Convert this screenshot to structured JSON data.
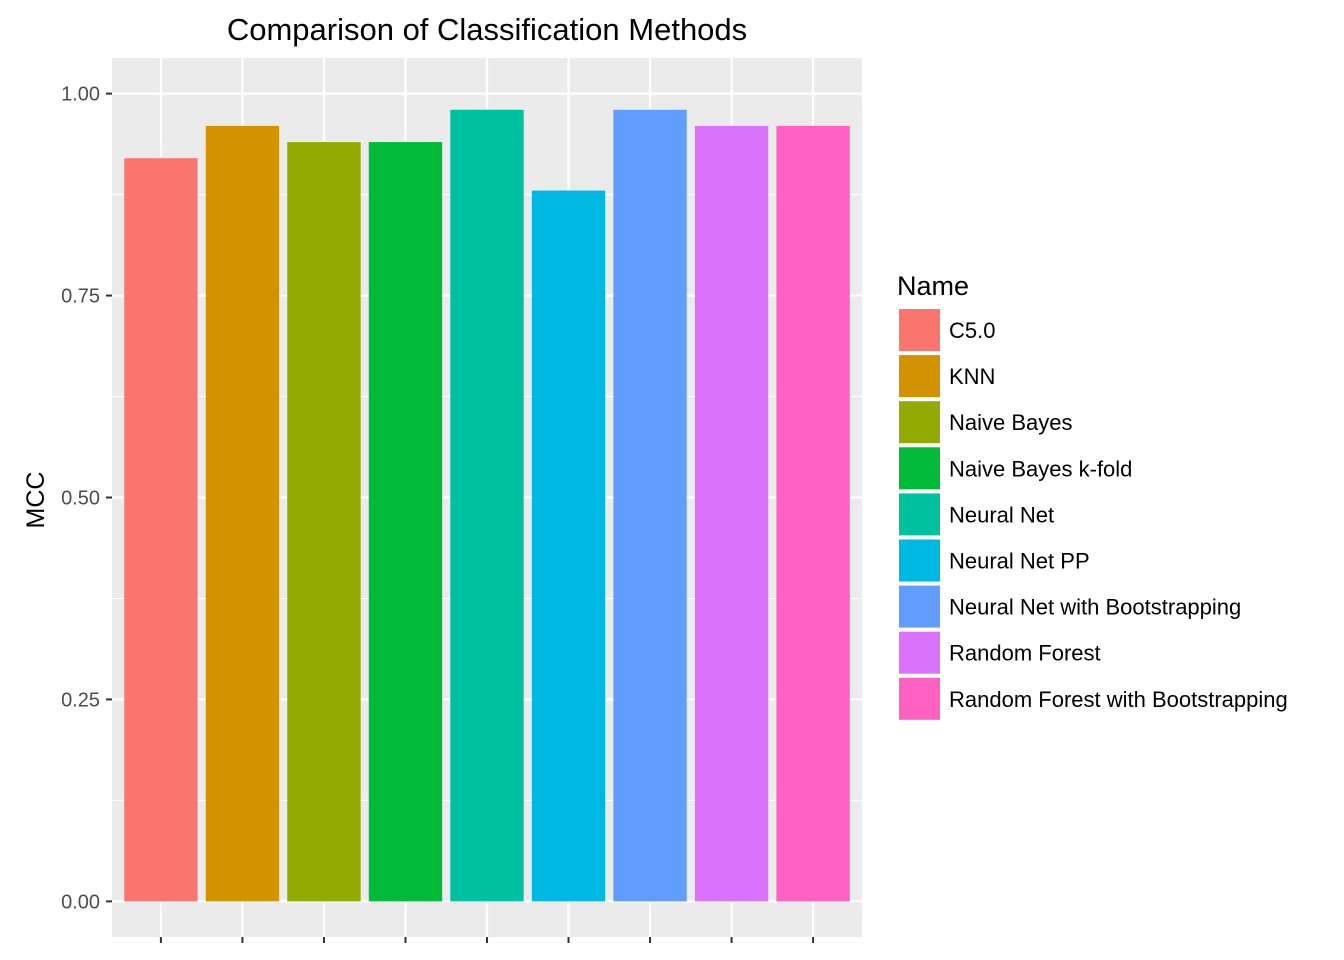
{
  "chart_data": {
    "type": "bar",
    "title": "Comparison of Classification Methods",
    "xlabel": "",
    "ylabel": "MCC",
    "categories": [
      "C5.0",
      "KNN",
      "Naive Bayes",
      "Naive Bayes k-fold",
      "Neural Net",
      "Neural Net PP",
      "Neural Net with Bootstrapping",
      "Random Forest",
      "Random Forest with Bootstrapping"
    ],
    "values": [
      0.92,
      0.96,
      0.94,
      0.94,
      0.98,
      0.88,
      0.98,
      0.96,
      0.96
    ],
    "colors": [
      "#F8766D",
      "#D39200",
      "#93AA00",
      "#00BA38",
      "#00C19F",
      "#00B9E3",
      "#619CFF",
      "#DB72FB",
      "#FF61C3"
    ],
    "ylim": [
      -0.0441,
      1.0441
    ],
    "yticks": [
      0.0,
      0.25,
      0.5,
      0.75,
      1.0
    ],
    "ytick_labels": [
      "0.00",
      "0.25",
      "0.50",
      "0.75",
      "1.00"
    ],
    "grid": true,
    "legend": {
      "title": "Name",
      "position": "right",
      "entries": [
        "C5.0",
        "KNN",
        "Naive Bayes",
        "Naive Bayes k-fold",
        "Neural Net",
        "Neural Net PP",
        "Neural Net with Bootstrapping",
        "Random Forest",
        "Random Forest with Bootstrapping"
      ]
    },
    "panel_background": "#EBEBEB",
    "grid_color": "#FFFFFF"
  }
}
